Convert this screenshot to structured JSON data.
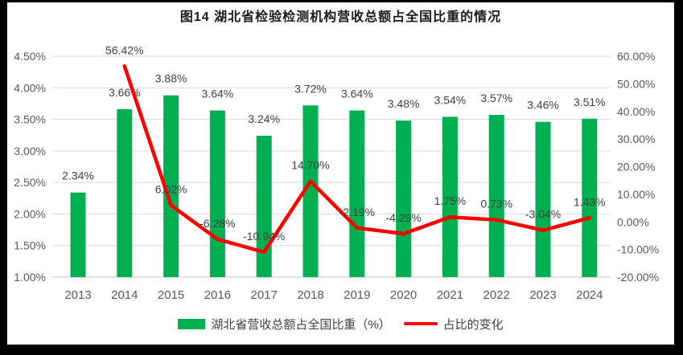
{
  "title": "图14 湖北省检验检测机构营收总额占全国比重的情况",
  "legend": {
    "items": [
      {
        "label": "湖北省营收总额占全国比重（%）",
        "swatch": "bar",
        "color": "#00B050"
      },
      {
        "label": "占比的变化",
        "swatch": "line",
        "color": "#FF0000"
      }
    ]
  },
  "chart_data": {
    "type": "combo: bar + line",
    "title": "图14 湖北省检验检测机构营收总额占全国比重的情况",
    "categories": [
      "2013",
      "2014",
      "2015",
      "2016",
      "2017",
      "2018",
      "2019",
      "2020",
      "2021",
      "2022",
      "2023",
      "2024"
    ],
    "series": [
      {
        "name": "湖北省营收总额占全国比重（%）",
        "chart": "bar",
        "axis": "left",
        "color": "#00B050",
        "values": [
          2.34,
          3.66,
          3.88,
          3.64,
          3.24,
          3.72,
          3.64,
          3.48,
          3.54,
          3.57,
          3.46,
          3.51
        ],
        "labels": [
          "2.34%",
          "3.66%",
          "3.88%",
          "3.64%",
          "3.24%",
          "3.72%",
          "3.64%",
          "3.48%",
          "3.54%",
          "3.57%",
          "3.46%",
          "3.51%"
        ]
      },
      {
        "name": "占比的变化",
        "chart": "line",
        "axis": "right",
        "color": "#FF0000",
        "values": [
          null,
          56.42,
          6.02,
          -6.28,
          -10.94,
          14.7,
          -2.19,
          -4.29,
          1.75,
          0.73,
          -3.04,
          1.43
        ],
        "labels": [
          null,
          "56.42%",
          "6.02%",
          "-6.28%",
          "-10.94%",
          "14.70%",
          "-2.19%",
          "-4.29%",
          "1.75%",
          "0.73%",
          "-3.04%",
          "1.43%"
        ]
      }
    ],
    "left_axis": {
      "min": 1.0,
      "max": 4.5,
      "step": 0.5,
      "tick_labels": [
        "1.00%",
        "1.50%",
        "2.00%",
        "2.50%",
        "3.00%",
        "3.50%",
        "4.00%",
        "4.50%"
      ]
    },
    "right_axis": {
      "min": -20.0,
      "max": 60.0,
      "step": 10.0,
      "tick_labels": [
        "-20.00%",
        "-10.00%",
        "0.00%",
        "10.00%",
        "20.00%",
        "30.00%",
        "40.00%",
        "50.00%",
        "60.00%"
      ]
    },
    "grid": true,
    "legend_position": "bottom",
    "colors": {
      "bar": "#00B050",
      "line": "#FF0000",
      "gridline": "#D9D9D9",
      "axis_text": "#595959",
      "data_label_text": "#404040",
      "title_text": "#1a1a1a",
      "frame_border": "#000000"
    }
  }
}
